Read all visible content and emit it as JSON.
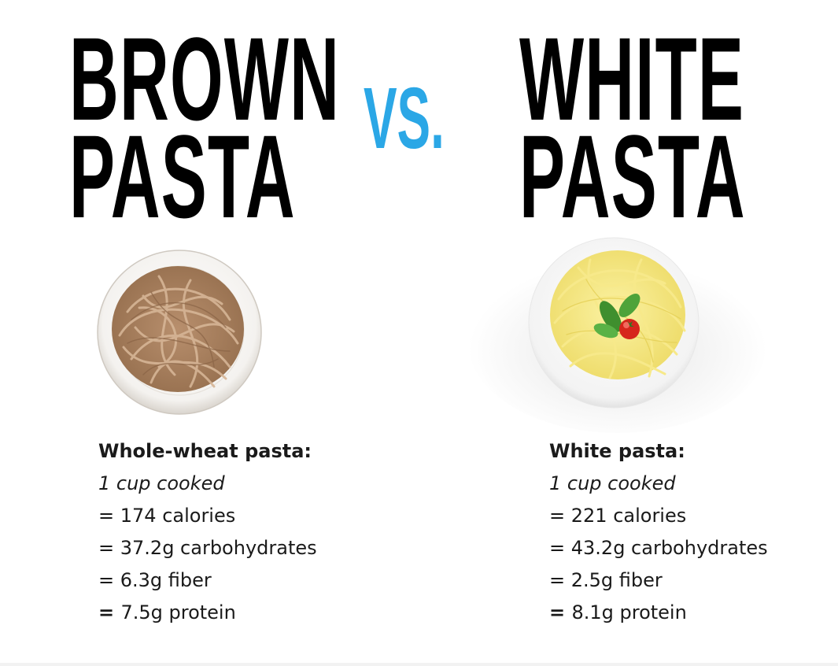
{
  "colors": {
    "headline": "#000000",
    "vs": "#2ba7e6",
    "text": "#1a1a1a",
    "background": "#ffffff"
  },
  "left": {
    "title_line1": "BROWN",
    "title_line2": "PASTA",
    "image_icon": "brown-pasta-plate",
    "heading": "Whole-wheat pasta:",
    "serving": "1 cup cooked",
    "calories": "174 calories",
    "carbs": "37.2g carbohydrates",
    "fiber": "6.3g fiber",
    "protein": "7.5g protein"
  },
  "vs": "VS.",
  "right": {
    "title_line1": "WHITE",
    "title_line2": "PASTA",
    "image_icon": "white-pasta-plate-with-basil-and-tomato",
    "heading": "White pasta:",
    "serving": "1 cup cooked",
    "calories": "221 calories",
    "carbs": "43.2g carbohydrates",
    "fiber": "2.5g fiber",
    "protein": "8.1g protein"
  },
  "equals": "= "
}
